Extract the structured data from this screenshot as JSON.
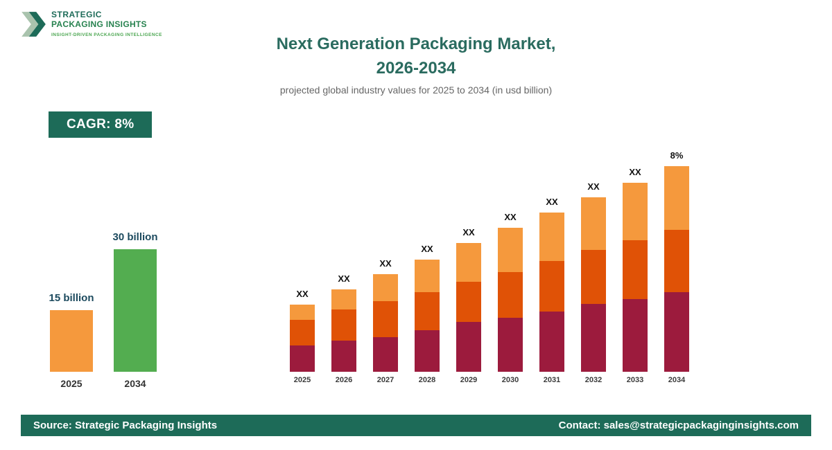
{
  "brand": {
    "name_line1": "STRATEGIC",
    "name_line2": "PACKAGING INSIGHTS",
    "tagline": "INSIGHT-DRIVEN PACKAGING INTELLIGENCE"
  },
  "header": {
    "title_line1": "Next Generation Packaging Market,",
    "title_line2": "2026-2034",
    "subtitle": "projected global industry values for 2025 to 2034 (in usd billion)"
  },
  "cagr_badge": "CAGR: 8%",
  "footer": {
    "source": "Source: Strategic Packaging Insights",
    "contact": "Contact: sales@strategicpackaginginsights.com"
  },
  "colors": {
    "teal": "#1d6b58",
    "title_teal": "#2a6b5f",
    "orange_light": "#f5993d",
    "orange_dark": "#e05206",
    "maroon": "#9c1b3d",
    "green": "#53ad50"
  },
  "chart_data": [
    {
      "type": "bar",
      "name": "cagr-comparison",
      "title": "2025 vs 2034 market size",
      "categories": [
        "2025",
        "2034"
      ],
      "values": [
        15,
        30
      ],
      "value_labels": [
        "15 billion",
        "30 billion"
      ],
      "colors": [
        "#f5993d",
        "#53ad50"
      ],
      "unit": "usd billion",
      "grid": false,
      "legend": "none"
    },
    {
      "type": "bar",
      "subtype": "stacked",
      "name": "market-projection-2025-2034",
      "title": "Next Generation Packaging Market projection",
      "categories": [
        "2025",
        "2026",
        "2027",
        "2028",
        "2029",
        "2030",
        "2031",
        "2032",
        "2033",
        "2034"
      ],
      "series": [
        {
          "name": "segment-bottom",
          "color": "#9c1b3d",
          "values": [
            38,
            45,
            50,
            60,
            72,
            78,
            87,
            98,
            105,
            115
          ]
        },
        {
          "name": "segment-middle",
          "color": "#e05206",
          "values": [
            37,
            45,
            52,
            55,
            58,
            66,
            73,
            78,
            85,
            90
          ]
        },
        {
          "name": "segment-top",
          "color": "#f5993d",
          "values": [
            22,
            29,
            39,
            47,
            56,
            64,
            70,
            76,
            83,
            92
          ]
        }
      ],
      "totals": [
        97,
        119,
        141,
        162,
        186,
        208,
        230,
        252,
        273,
        297
      ],
      "bar_labels": [
        "XX",
        "XX",
        "XX",
        "XX",
        "XX",
        "XX",
        "XX",
        "XX",
        "XX",
        "8%"
      ],
      "values_note": "relative units estimated from bar heights; numeric values masked as XX in source image",
      "grid": false,
      "legend": "none"
    }
  ]
}
